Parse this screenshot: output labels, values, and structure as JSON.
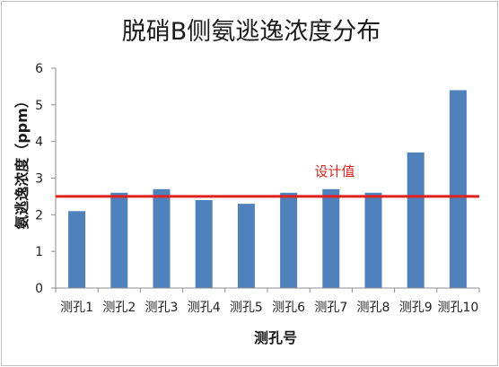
{
  "chart_data": {
    "type": "bar",
    "title": "脱硝B侧氨逃逸浓度分布",
    "xlabel": "测孔号",
    "ylabel": "氨逃逸浓度（ppm）",
    "categories": [
      "测孔1",
      "测孔2",
      "测孔3",
      "测孔4",
      "测孔5",
      "测孔6",
      "测孔7",
      "测孔8",
      "测孔9",
      "测孔10"
    ],
    "values": [
      2.1,
      2.6,
      2.7,
      2.4,
      2.3,
      2.6,
      2.7,
      2.6,
      3.7,
      5.4
    ],
    "ylim": [
      0,
      6
    ],
    "yticks": [
      "0",
      "1",
      "2",
      "3",
      "4",
      "5",
      "6"
    ],
    "grid": false,
    "legend": false,
    "reference_line": {
      "value": 2.5,
      "label": "设计值",
      "color": "#e0221c"
    },
    "bar_color": "#4f81bd"
  }
}
